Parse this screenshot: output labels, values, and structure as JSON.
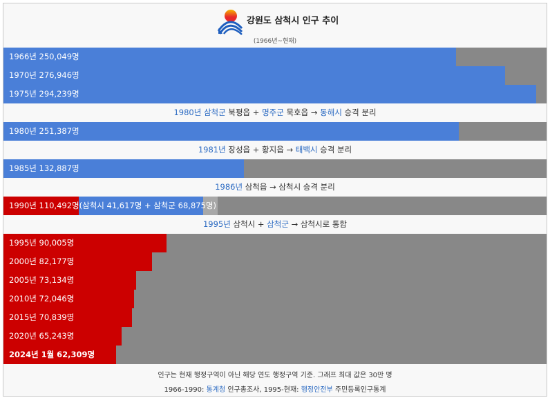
{
  "header": {
    "title": "강원도 삼척시 인구 추이",
    "subtitle": "(1966년~현재)",
    "logo_icon": "gangwon-province-emblem",
    "logo_colors": {
      "sun": "#e8282c",
      "sun_top": "#f5b400",
      "waves": "#1f5fbf"
    }
  },
  "colors": {
    "pre_merge": "#4a7fd8",
    "post_merge": "#cc0000",
    "remainder": "#888888",
    "split_remainder": "#a8a8a8",
    "link": "#2b6ac2"
  },
  "notes": {
    "n1980": {
      "year": "1980년",
      "a": "삼척군",
      "b": " 북평읍 + ",
      "c": "명주군",
      "d": " 묵호읍 → ",
      "e": "동해시",
      "f": " 승격 분리"
    },
    "n1981": {
      "year": "1981년",
      "b": " 장성읍 + 황지읍 → ",
      "e": "태백시",
      "f": " 승격 분리"
    },
    "n1986": {
      "year": "1986년",
      "b": " 삼척읍 → 삼척시 승격 분리"
    },
    "n1995": {
      "year": "1995년",
      "b": " 삼척시 + ",
      "c": "삼척군",
      "d": " → 삼척시로 통합"
    }
  },
  "footer": {
    "line1": "인구는 현재 행정구역이 아닌 해당 연도 행정구역 기준. 그래프 최대 값은 30만 명",
    "line2_a": "1966-1990: ",
    "line2_b": "통계청",
    "line2_c": " 인구총조사, 1995-현재: ",
    "line2_d": "행정안전부",
    "line2_e": " 주민등록인구통계"
  },
  "chart_data": {
    "type": "bar",
    "title": "강원도 삼척시 인구 추이",
    "subtitle": "(1966년~현재)",
    "max_value": 300000,
    "bars": [
      {
        "label": "1966년 250,049명",
        "value": 250049,
        "color": "#4a7fd8"
      },
      {
        "label": "1970년 276,946명",
        "value": 276946,
        "color": "#4a7fd8"
      },
      {
        "label": "1975년 294,239명",
        "value": 294239,
        "color": "#4a7fd8"
      },
      {
        "label": "1980년 251,387명",
        "value": 251387,
        "color": "#4a7fd8"
      },
      {
        "label": "1985년 132,887명",
        "value": 132887,
        "color": "#4a7fd8"
      },
      {
        "label": "1990년 110,492명(삼척시 41,617명 + 삼척군 68,875명)",
        "value": 110492,
        "parts": [
          41617,
          68875
        ]
      },
      {
        "label": "1995년 90,005명",
        "value": 90005,
        "color": "#cc0000"
      },
      {
        "label": "2000년 82,177명",
        "value": 82177,
        "color": "#cc0000"
      },
      {
        "label": "2005년 73,134명",
        "value": 73134,
        "color": "#cc0000"
      },
      {
        "label": "2010년 72,046명",
        "value": 72046,
        "color": "#cc0000"
      },
      {
        "label": "2015년 70,839명",
        "value": 70839,
        "color": "#cc0000"
      },
      {
        "label": "2020년 65,243명",
        "value": 65243,
        "color": "#cc0000"
      },
      {
        "label": "2024년 1월 62,309명",
        "value": 62309,
        "color": "#cc0000",
        "bold": true
      }
    ]
  }
}
